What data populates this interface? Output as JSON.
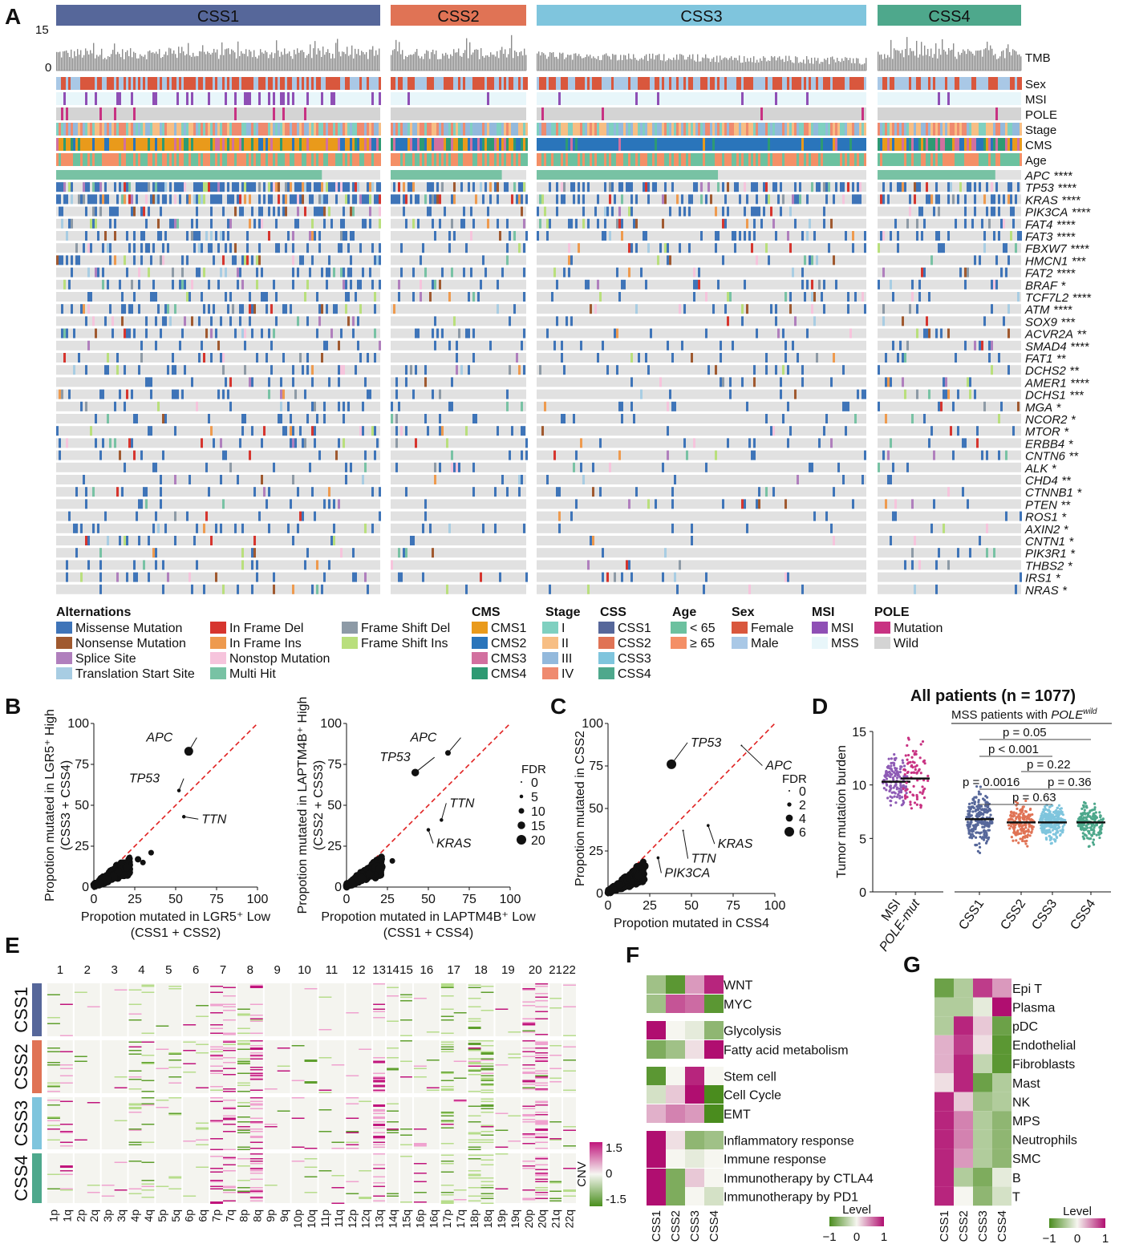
{
  "panelA": {
    "letter": "A",
    "groups": [
      {
        "name": "CSS1",
        "color": "#56679a"
      },
      {
        "name": "CSS2",
        "color": "#e07355"
      },
      {
        "name": "CSS3",
        "color": "#7fc5dd"
      },
      {
        "name": "CSS4",
        "color": "#4ea88c"
      }
    ],
    "tmb_ticks": [
      "15",
      "0"
    ],
    "track_labels": [
      "TMB",
      "Sex",
      "MSI",
      "POLE",
      "Stage",
      "CMS",
      "Age"
    ],
    "genes": [
      {
        "gene": "APC",
        "sig": "****"
      },
      {
        "gene": "TP53",
        "sig": "****"
      },
      {
        "gene": "KRAS",
        "sig": "****"
      },
      {
        "gene": "PIK3CA",
        "sig": "****"
      },
      {
        "gene": "FAT4",
        "sig": "****"
      },
      {
        "gene": "FAT3",
        "sig": "****"
      },
      {
        "gene": "FBXW7",
        "sig": "****"
      },
      {
        "gene": "HMCN1",
        "sig": "***"
      },
      {
        "gene": "FAT2",
        "sig": "****"
      },
      {
        "gene": "BRAF",
        "sig": "*"
      },
      {
        "gene": "TCF7L2",
        "sig": "****"
      },
      {
        "gene": "ATM",
        "sig": "****"
      },
      {
        "gene": "SOX9",
        "sig": "***"
      },
      {
        "gene": "ACVR2A",
        "sig": "**"
      },
      {
        "gene": "SMAD4",
        "sig": "****"
      },
      {
        "gene": "FAT1",
        "sig": "**"
      },
      {
        "gene": "DCHS2",
        "sig": "**"
      },
      {
        "gene": "AMER1",
        "sig": "****"
      },
      {
        "gene": "DCHS1",
        "sig": "***"
      },
      {
        "gene": "MGA",
        "sig": "*"
      },
      {
        "gene": "NCOR2",
        "sig": "*"
      },
      {
        "gene": "MTOR",
        "sig": "*"
      },
      {
        "gene": "ERBB4",
        "sig": "*"
      },
      {
        "gene": "CNTN6",
        "sig": "**"
      },
      {
        "gene": "ALK",
        "sig": "*"
      },
      {
        "gene": "CHD4",
        "sig": "**"
      },
      {
        "gene": "CTNNB1",
        "sig": "*"
      },
      {
        "gene": "PTEN",
        "sig": "**"
      },
      {
        "gene": "ROS1",
        "sig": "*"
      },
      {
        "gene": "AXIN2",
        "sig": "*"
      },
      {
        "gene": "CNTN1",
        "sig": "*"
      },
      {
        "gene": "PIK3R1",
        "sig": "*"
      },
      {
        "gene": "THBS2",
        "sig": "*"
      },
      {
        "gene": "IRS1",
        "sig": "*"
      },
      {
        "gene": "NRAS",
        "sig": "*"
      }
    ],
    "legend": {
      "alterations_title": "Alternations",
      "alterations": [
        {
          "label": "Missense Mutation",
          "color": "#3e74b8"
        },
        {
          "label": "Nonsense Mutation",
          "color": "#a0592f"
        },
        {
          "label": "Splice Site",
          "color": "#b07fbd"
        },
        {
          "label": "Translation Start Site",
          "color": "#a8cde3"
        },
        {
          "label": "In Frame Del",
          "color": "#d6352e"
        },
        {
          "label": "In Frame Ins",
          "color": "#ee9a4e"
        },
        {
          "label": "Nonstop Mutation",
          "color": "#f6c4dc"
        },
        {
          "label": "Multi Hit",
          "color": "#78c2a4"
        },
        {
          "label": "Frame Shift Del",
          "color": "#8d9aa6"
        },
        {
          "label": "Frame Shift Ins",
          "color": "#b9df7c"
        }
      ],
      "cms_title": "CMS",
      "cms": [
        {
          "label": "CMS1",
          "color": "#e99a1b"
        },
        {
          "label": "CMS2",
          "color": "#2a75bb"
        },
        {
          "label": "CMS3",
          "color": "#d2709f"
        },
        {
          "label": "CMS4",
          "color": "#2e9a73"
        }
      ],
      "stage_title": "Stage",
      "stage": [
        {
          "label": "I",
          "color": "#7fd0c0"
        },
        {
          "label": "II",
          "color": "#f7be84"
        },
        {
          "label": "III",
          "color": "#93b9dc"
        },
        {
          "label": "IV",
          "color": "#ef8a6f"
        }
      ],
      "css_title": "CSS",
      "css": [
        {
          "label": "CSS1",
          "color": "#56679a"
        },
        {
          "label": "CSS2",
          "color": "#e07355"
        },
        {
          "label": "CSS3",
          "color": "#7fc5dd"
        },
        {
          "label": "CSS4",
          "color": "#4ea88c"
        }
      ],
      "age_title": "Age",
      "age": [
        {
          "label": "< 65",
          "color": "#6cc19f"
        },
        {
          "label": "≥ 65",
          "color": "#f48f66"
        }
      ],
      "sex_title": "Sex",
      "sex": [
        {
          "label": "Female",
          "color": "#d9573d"
        },
        {
          "label": "Male",
          "color": "#a9c8e6"
        }
      ],
      "msi_title": "MSI",
      "msi": [
        {
          "label": "MSI",
          "color": "#8f4fb5"
        },
        {
          "label": "MSS",
          "color": "#e8f6fa"
        }
      ],
      "pole_title": "POLE",
      "pole": [
        {
          "label": "Mutation",
          "color": "#c83282"
        },
        {
          "label": "Wild",
          "color": "#d4d4d4"
        }
      ]
    }
  },
  "panelB": {
    "letter": "B",
    "fdr_title": "FDR",
    "fdr_levels": [
      "0",
      "5",
      "10",
      "15",
      "20"
    ]
  },
  "panelC": {
    "letter": "C",
    "fdr_title": "FDR",
    "fdr_levels": [
      "0",
      "2",
      "4",
      "6"
    ]
  },
  "panelD": {
    "letter": "D",
    "title": "All patients (n = 1077)",
    "subtitle_main": "MSS patients with ",
    "subtitle_gene": "POLE",
    "subtitle_sup": "wild",
    "comparisons": [
      "p = 0.05",
      "p < 0.001",
      "p = 0.22",
      "p = 0.0016",
      "p = 0.36",
      "p = 0.63"
    ]
  },
  "panelE": {
    "letter": "E",
    "chromosomes": [
      "1",
      "2",
      "3",
      "4",
      "5",
      "6",
      "7",
      "8",
      "9",
      "10",
      "11",
      "12",
      "13",
      "14",
      "15",
      "16",
      "17",
      "18",
      "19",
      "20",
      "21",
      "22"
    ],
    "arms": [
      "1p",
      "1q",
      "2p",
      "2q",
      "3p",
      "3q",
      "4p",
      "4q",
      "5p",
      "5q",
      "6p",
      "6q",
      "7p",
      "7q",
      "8p",
      "8q",
      "9p",
      "9q",
      "10p",
      "10q",
      "11p",
      "11q",
      "12p",
      "12q",
      "13q",
      "14q",
      "15q",
      "16p",
      "16q",
      "17p",
      "17q",
      "18p",
      "18q",
      "19p",
      "19q",
      "20p",
      "20q",
      "21q",
      "22q"
    ],
    "groups": [
      "CSS1",
      "CSS2",
      "CSS3",
      "CSS4"
    ],
    "colorbar_label": "CNV",
    "colorbar_ticks": [
      "1.5",
      "0",
      "-1.5"
    ]
  },
  "panelF": {
    "letter": "F",
    "rows": [
      "WNT",
      "MYC",
      "Glycolysis",
      "Fatty acid metabolism",
      "Stem cell",
      "Cell Cycle",
      "EMT",
      "Inflammatory response",
      "Immune response",
      "Immunotherapy by CTLA4",
      "Immunotherapy by PD1"
    ],
    "cols": [
      "CSS1",
      "CSS2",
      "CSS3",
      "CSS4"
    ],
    "values": [
      [
        -0.5,
        -0.9,
        0.4,
        0.9
      ],
      [
        -0.5,
        0.7,
        0.6,
        -0.9
      ],
      [
        1.0,
        0.0,
        -0.1,
        -0.6
      ],
      [
        -0.7,
        -0.5,
        0.1,
        1.0
      ],
      [
        -0.9,
        0.0,
        0.9,
        0.0
      ],
      [
        -0.2,
        0.2,
        1.0,
        -1.0
      ],
      [
        0.3,
        0.5,
        0.4,
        -1.0
      ],
      [
        1.0,
        0.1,
        -0.6,
        -0.5
      ],
      [
        1.0,
        0.0,
        -0.1,
        0.0
      ],
      [
        1.0,
        -0.7,
        0.2,
        0.0
      ],
      [
        1.0,
        -0.7,
        0.0,
        -0.2
      ]
    ],
    "legend_title": "Level",
    "legend_ticks": [
      "−1",
      "0",
      "1"
    ]
  },
  "panelG": {
    "letter": "G",
    "rows": [
      "Epi T",
      "Plasma",
      "pDC",
      "Endothelial",
      "Fibroblasts",
      "Mast",
      "NK",
      "MPS",
      "Neutrophils",
      "SMC",
      "B",
      "T"
    ],
    "cols": [
      "CSS1",
      "CSS2",
      "CSS3",
      "CSS4"
    ],
    "values": [
      [
        -0.8,
        -0.4,
        0.8,
        0.4
      ],
      [
        -0.4,
        -0.4,
        -0.1,
        1.0
      ],
      [
        -0.4,
        0.9,
        0.2,
        -0.8
      ],
      [
        0.3,
        0.8,
        0.1,
        -0.9
      ],
      [
        0.3,
        0.9,
        -0.3,
        -0.9
      ],
      [
        0.1,
        0.9,
        -0.8,
        -0.4
      ],
      [
        0.9,
        0.2,
        -0.5,
        -0.4
      ],
      [
        0.9,
        0.5,
        -0.4,
        -0.6
      ],
      [
        0.9,
        0.5,
        -0.4,
        -0.6
      ],
      [
        0.9,
        0.4,
        -0.4,
        -0.6
      ],
      [
        0.9,
        -0.4,
        -0.7,
        -0.1
      ],
      [
        0.9,
        0.0,
        -0.6,
        -0.2
      ]
    ],
    "legend_title": "Level",
    "legend_ticks": [
      "−1",
      "0",
      "1"
    ]
  },
  "chart_data": [
    {
      "type": "scatter",
      "xlabel": "Propotion mutated in LGR5⁺ Low",
      "xlabel2": "(CSS1 + CSS2)",
      "ylabel": "Propotion mutated in LGR5⁺ High",
      "ylabel2": "(CSS3 + CSS4)",
      "xlim": [
        0,
        100
      ],
      "ylim": [
        0,
        100
      ],
      "xticks": [
        "0",
        "25",
        "50",
        "75",
        "100"
      ],
      "yticks": [
        "0",
        "25",
        "50",
        "75",
        "100"
      ],
      "points": [
        {
          "label": "APC",
          "x": 58,
          "y": 83,
          "fdr": 18
        },
        {
          "label": "TP53",
          "x": 52,
          "y": 59,
          "fdr": 5
        },
        {
          "label": "TTN",
          "x": 55,
          "y": 43,
          "fdr": 5
        },
        {
          "label": "",
          "x": 35,
          "y": 21,
          "fdr": 10
        },
        {
          "label": "",
          "x": 30,
          "y": 15,
          "fdr": 10
        },
        {
          "label": "",
          "x": 27,
          "y": 17,
          "fdr": 12
        },
        {
          "label": "",
          "x": 20,
          "y": 12,
          "fdr": 15
        },
        {
          "label": "",
          "x": 15,
          "y": 9,
          "fdr": 15
        },
        {
          "label": "",
          "x": 12,
          "y": 6,
          "fdr": 18
        },
        {
          "label": "",
          "x": 8,
          "y": 4,
          "fdr": 20
        },
        {
          "label": "",
          "x": 5,
          "y": 3,
          "fdr": 20
        },
        {
          "label": "",
          "x": 3,
          "y": 2,
          "fdr": 20
        }
      ]
    },
    {
      "type": "scatter",
      "xlabel": "Propotion mutated in LAPTM4B⁺ Low",
      "xlabel2": "(CSS1 + CSS4)",
      "ylabel": "Propotion mutated in LAPTM4B⁺ High",
      "ylabel2": "(CSS2 + CSS3)",
      "xlim": [
        0,
        100
      ],
      "ylim": [
        0,
        100
      ],
      "xticks": [
        "0",
        "25",
        "50",
        "75",
        "100"
      ],
      "yticks": [
        "0",
        "25",
        "50",
        "75",
        "100"
      ],
      "points": [
        {
          "label": "APC",
          "x": 62,
          "y": 82,
          "fdr": 10
        },
        {
          "label": "TP53",
          "x": 42,
          "y": 70,
          "fdr": 15
        },
        {
          "label": "TTN",
          "x": 58,
          "y": 41,
          "fdr": 5
        },
        {
          "label": "KRAS",
          "x": 50,
          "y": 35,
          "fdr": 5
        },
        {
          "label": "",
          "x": 28,
          "y": 16,
          "fdr": 10
        },
        {
          "label": "",
          "x": 20,
          "y": 11,
          "fdr": 15
        },
        {
          "label": "",
          "x": 14,
          "y": 8,
          "fdr": 15
        },
        {
          "label": "",
          "x": 9,
          "y": 5,
          "fdr": 20
        },
        {
          "label": "",
          "x": 5,
          "y": 3,
          "fdr": 20
        },
        {
          "label": "",
          "x": 3,
          "y": 2,
          "fdr": 20
        }
      ]
    },
    {
      "type": "scatter",
      "xlabel": "Propotion mutated in CSS4",
      "ylabel": "Propotion mutated in CSS2",
      "xlim": [
        0,
        100
      ],
      "ylim": [
        0,
        100
      ],
      "xticks": [
        "0",
        "25",
        "50",
        "75",
        "100"
      ],
      "yticks": [
        "0",
        "25",
        "50",
        "75",
        "100"
      ],
      "points": [
        {
          "label": "TP53",
          "x": 38,
          "y": 76,
          "fdr": 6
        },
        {
          "label": "APC",
          "x": 80,
          "y": 87,
          "fdr": 0
        },
        {
          "label": "KRAS",
          "x": 60,
          "y": 40,
          "fdr": 1
        },
        {
          "label": "TTN",
          "x": 45,
          "y": 37,
          "fdr": 0
        },
        {
          "label": "PIK3CA",
          "x": 30,
          "y": 21,
          "fdr": 1
        },
        {
          "label": "",
          "x": 20,
          "y": 15,
          "fdr": 2
        },
        {
          "label": "",
          "x": 12,
          "y": 9,
          "fdr": 3
        },
        {
          "label": "",
          "x": 7,
          "y": 5,
          "fdr": 4
        },
        {
          "label": "",
          "x": 3,
          "y": 2,
          "fdr": 5
        }
      ]
    },
    {
      "type": "scatter",
      "ylabel": "Tumor mutation burden",
      "ylim": [
        0,
        15
      ],
      "yticks": [
        "0",
        "5",
        "10",
        "15"
      ],
      "categories": [
        "MSI",
        "POLE-mut",
        "CSS1",
        "CSS2",
        "CSS3",
        "CSS4"
      ],
      "medians": [
        10.3,
        10.6,
        6.8,
        6.5,
        6.5,
        6.5
      ],
      "colors": [
        "#8e5bb5",
        "#c83282",
        "#56679a",
        "#e07355",
        "#7fc5dd",
        "#4ea88c"
      ]
    }
  ]
}
